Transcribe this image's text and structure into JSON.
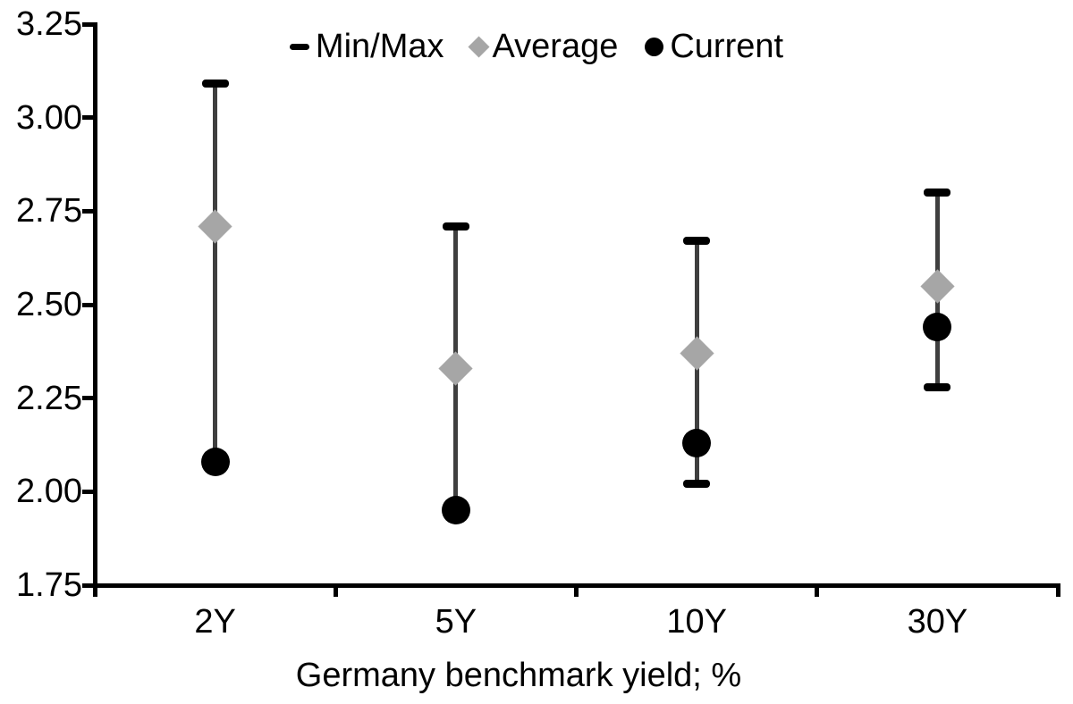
{
  "legend": {
    "items": [
      {
        "label": "Min/Max",
        "marker": "dash"
      },
      {
        "label": "Average",
        "marker": "diamond"
      },
      {
        "label": "Current",
        "marker": "circle"
      }
    ]
  },
  "chart_data": {
    "type": "scatter",
    "subtype": "min-max-range-dot-plot",
    "title": "",
    "xlabel": "Germany benchmark yield; %",
    "ylabel": "",
    "categories": [
      "2Y",
      "5Y",
      "10Y",
      "30Y"
    ],
    "series": [
      {
        "name": "Min/Max",
        "marker": "dash",
        "color": "#000000",
        "min": [
          2.08,
          1.95,
          2.02,
          2.28
        ],
        "max": [
          3.09,
          2.71,
          2.67,
          2.8
        ]
      },
      {
        "name": "Average",
        "marker": "diamond",
        "color": "#a6a6a6",
        "values": [
          2.71,
          2.33,
          2.37,
          2.55
        ]
      },
      {
        "name": "Current",
        "marker": "circle",
        "color": "#000000",
        "values": [
          2.08,
          1.95,
          2.13,
          2.44
        ]
      }
    ],
    "ylim": [
      1.75,
      3.25
    ],
    "ytick_step": 0.25,
    "ytick_labels": [
      "3.25",
      "3.00",
      "2.75",
      "2.50",
      "2.25",
      "2.00",
      "1.75"
    ],
    "grid": false,
    "legend_position": "top-center",
    "colors": {
      "range_line": "#3f3f3f",
      "cap": "#000000",
      "average_marker": "#a6a6a6",
      "current_marker": "#000000",
      "axis": "#000000",
      "text": "#000000",
      "background": "#ffffff"
    }
  }
}
